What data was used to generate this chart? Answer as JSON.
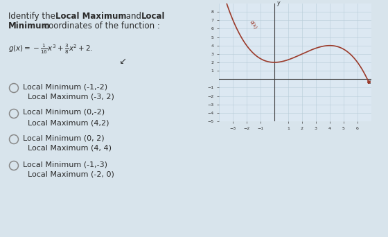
{
  "options": [
    [
      "Local Minimum (-1,-2)",
      "Local Maximum (-3, 2)"
    ],
    [
      "Local Minimum (0,-2)",
      "Local Maximum (4,2)"
    ],
    [
      "Local Minimum (0, 2)",
      "Local Maximum (4, 4)"
    ],
    [
      "Local Minimum (-1,-3)",
      "Local Maximum (-2, 0)"
    ]
  ],
  "curve_color": "#9b3a2a",
  "bg_color": "#dfe8f0",
  "graph_bg": "#dce8f2",
  "grid_color": "#b8ccd8",
  "axis_color": "#444444",
  "text_color": "#2a2a2a",
  "circle_color": "#888888",
  "page_bg": "#d8e4ec"
}
